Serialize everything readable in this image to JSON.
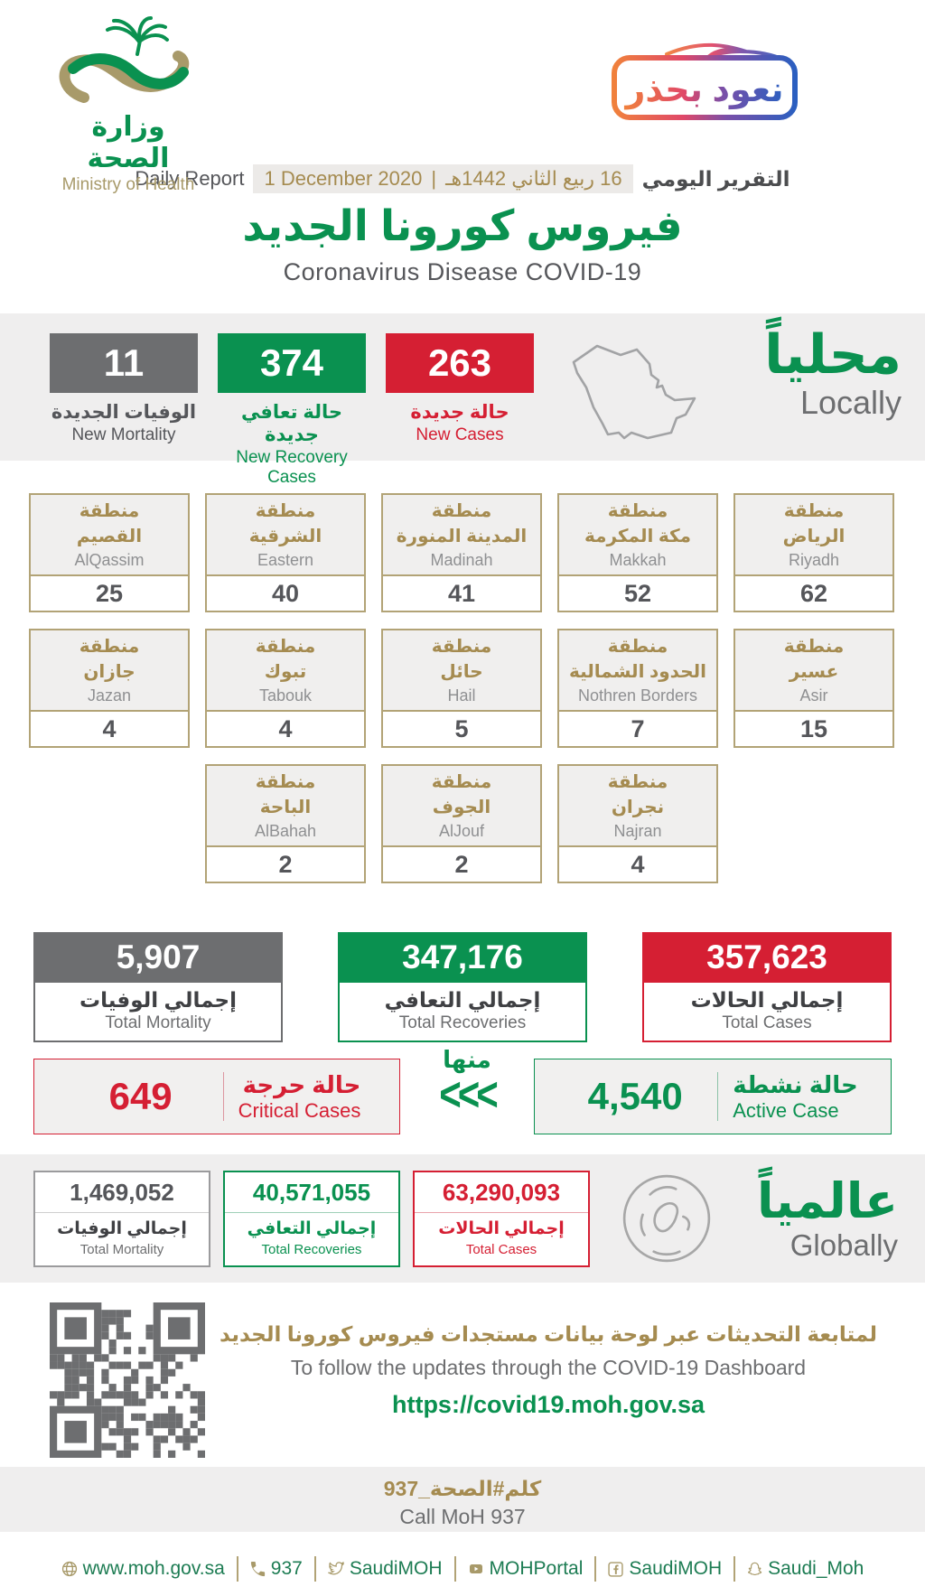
{
  "header": {
    "logo": {
      "ministry_ar": "وزارة الصحة",
      "ministry_en": "Ministry of Health"
    },
    "badge": {
      "text": "نعود بحذر"
    }
  },
  "report_line": {
    "daily_report_en": "Daily Report",
    "date_gregorian": "1 December 2020",
    "separator": "|",
    "date_hijri": "16 ربيع الثاني 1442هـ",
    "daily_report_ar": "التقرير اليومي"
  },
  "title": {
    "ar": "فيروس كورونا الجديد",
    "en": "Coronavirus Disease COVID-19"
  },
  "local": {
    "heading_ar": "محلياً",
    "heading_en": "Locally",
    "new_mortality": {
      "value": "11",
      "label_ar": "الوفيات الجديدة",
      "label_en": "New Mortality"
    },
    "new_recoveries": {
      "value": "374",
      "label_ar": "حالة تعافي جديدة",
      "label_en": "New Recovery Cases"
    },
    "new_cases": {
      "value": "263",
      "label_ar": "حالة جديدة",
      "label_en": "New Cases"
    }
  },
  "regions": {
    "row1": [
      {
        "prefix_ar": "منطقة",
        "name_ar": "القصيم",
        "name_en": "AlQassim",
        "value": "25"
      },
      {
        "prefix_ar": "منطقة",
        "name_ar": "الشرقية",
        "name_en": "Eastern",
        "value": "40"
      },
      {
        "prefix_ar": "منطقة",
        "name_ar": "المدينة المنورة",
        "name_en": "Madinah",
        "value": "41"
      },
      {
        "prefix_ar": "منطقة",
        "name_ar": "مكة المكرمة",
        "name_en": "Makkah",
        "value": "52"
      },
      {
        "prefix_ar": "منطقة",
        "name_ar": "الرياض",
        "name_en": "Riyadh",
        "value": "62"
      }
    ],
    "row2": [
      {
        "prefix_ar": "منطقة",
        "name_ar": "جازان",
        "name_en": "Jazan",
        "value": "4"
      },
      {
        "prefix_ar": "منطقة",
        "name_ar": "تبوك",
        "name_en": "Tabouk",
        "value": "4"
      },
      {
        "prefix_ar": "منطقة",
        "name_ar": "حائل",
        "name_en": "Hail",
        "value": "5"
      },
      {
        "prefix_ar": "منطقة",
        "name_ar": "الحدود الشمالية",
        "name_en": "Nothren Borders",
        "value": "7"
      },
      {
        "prefix_ar": "منطقة",
        "name_ar": "عسير",
        "name_en": "Asir",
        "value": "15"
      }
    ],
    "row3": [
      {
        "prefix_ar": "منطقة",
        "name_ar": "الباحة",
        "name_en": "AlBahah",
        "value": "2"
      },
      {
        "prefix_ar": "منطقة",
        "name_ar": "الجوف",
        "name_en": "AlJouf",
        "value": "2"
      },
      {
        "prefix_ar": "منطقة",
        "name_ar": "نجران",
        "name_en": "Najran",
        "value": "4"
      }
    ]
  },
  "totals": {
    "mortality": {
      "value": "5,907",
      "label_ar": "إجمالي الوفيات",
      "label_en": "Total Mortality"
    },
    "recoveries": {
      "value": "347,176",
      "label_ar": "إجمالي التعافي",
      "label_en": "Total Recoveries"
    },
    "cases": {
      "value": "357,623",
      "label_ar": "إجمالي الحالات",
      "label_en": "Total Cases"
    }
  },
  "breakdown": {
    "critical": {
      "value": "649",
      "label_ar": "حالة حرجة",
      "label_en": "Critical Cases"
    },
    "of_which_ar": "منها",
    "arrows": "<<<",
    "active": {
      "value": "4,540",
      "label_ar": "حالة نشطة",
      "label_en": "Active Case"
    }
  },
  "global": {
    "heading_ar": "عالمياً",
    "heading_en": "Globally",
    "mortality": {
      "value": "1,469,052",
      "label_ar": "إجمالي الوفيات",
      "label_en": "Total Mortality"
    },
    "recoveries": {
      "value": "40,571,055",
      "label_ar": "إجمالي التعافي",
      "label_en": "Total Recoveries"
    },
    "cases": {
      "value": "63,290,093",
      "label_ar": "إجمالي الحالات",
      "label_en": "Total Cases"
    }
  },
  "dashboard": {
    "line_ar": "لمتابعة التحديثات عبر لوحة بيانات مستجدات فيروس كورونا الجديد",
    "line_en": "To follow the updates through the COVID-19 Dashboard",
    "url": "https://covid19.moh.gov.sa"
  },
  "call_center": {
    "hashtag_ar": "كلم#الصحة_937",
    "label_en": "Call MoH 937"
  },
  "footer": {
    "website": "www.moh.gov.sa",
    "phone": "937",
    "twitter": "SaudiMOH",
    "youtube": "MOHPortal",
    "facebook": "SaudiMOH",
    "snapchat": "Saudi_Moh"
  },
  "colors": {
    "green": "#0a9150",
    "red": "#d51f33",
    "gray": "#6d6e70",
    "gold": "#a58b50"
  }
}
